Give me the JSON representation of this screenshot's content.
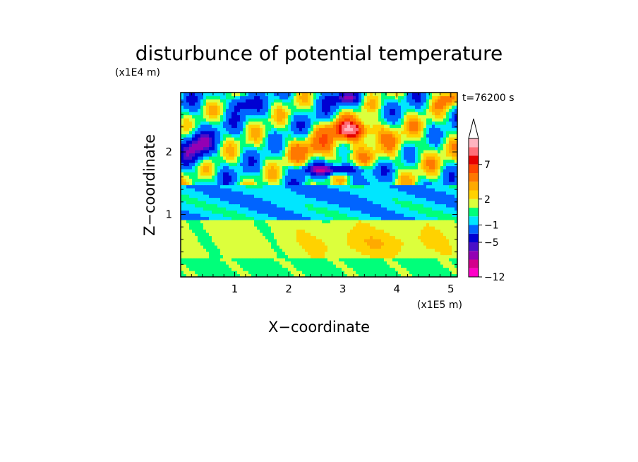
{
  "chart_data": {
    "type": "heatmap",
    "title": "disturbunce of potential temperature",
    "time_label": "t=76200 s",
    "xlabel": "X−coordinate",
    "ylabel": "Z−coordinate",
    "x_multiplier": "(x1E5 m)",
    "y_multiplier": "(x1E4 m)",
    "xlim": [
      0,
      5.12
    ],
    "ylim": [
      0,
      2.95
    ],
    "x_ticks": [
      1,
      2,
      3,
      4,
      5
    ],
    "y_ticks": [
      1,
      2
    ],
    "colorbar": {
      "colors": [
        "#ff00c8",
        "#d4008c",
        "#9400b4",
        "#4a10c8",
        "#0000d2",
        "#0064ff",
        "#00e6ff",
        "#00ff7a",
        "#dcff3c",
        "#ffd200",
        "#ffaa00",
        "#ff7800",
        "#ff4600",
        "#e60000",
        "#ff6e78",
        "#ffb4c0"
      ],
      "tick_labels": [
        "−12",
        "−5",
        "−1",
        "2",
        "7"
      ],
      "extend_max": true
    },
    "field_zones": [
      {
        "z_range": [
          0,
          0.35
        ],
        "dominant": "yellow / green, weak positive"
      },
      {
        "z_range": [
          0.35,
          0.9
        ],
        "dominant": "yellow / orange, +1 to +3"
      },
      {
        "z_range": [
          0.9,
          1.5
        ],
        "dominant": "green / cyan, around −1 to 0"
      },
      {
        "z_range": [
          1.5,
          2.95
        ],
        "dominant": "alternating red/orange and blue/purple wave pattern, up to about +10 and down to about −5"
      }
    ],
    "extrema": [
      {
        "x": 3.2,
        "z": 2.35,
        "level": "max",
        "value": 10
      },
      {
        "x": 2.8,
        "z": 1.75,
        "level": "min",
        "value": -5
      },
      {
        "x": 0.3,
        "z": 2.1,
        "level": "min",
        "value": -8
      }
    ]
  }
}
